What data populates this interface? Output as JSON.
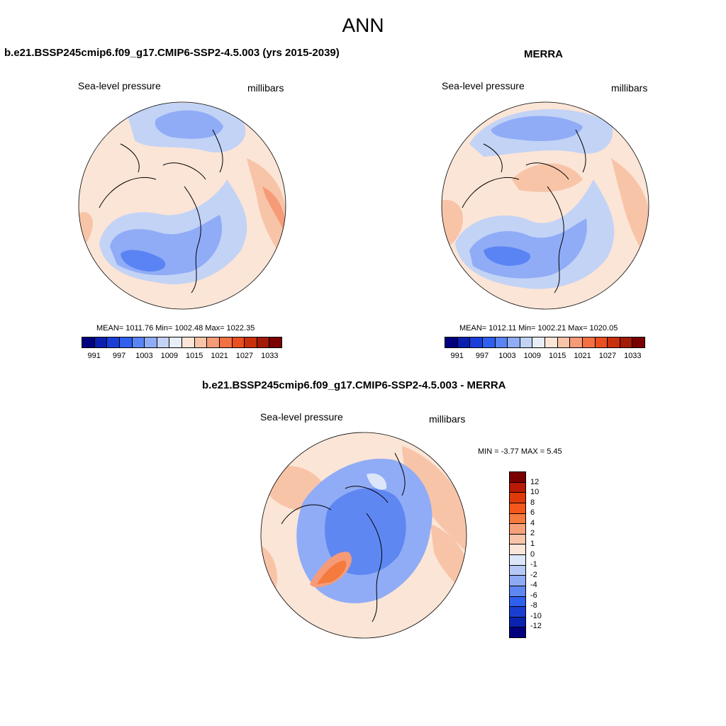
{
  "figure": {
    "title": "ANN"
  },
  "panels": [
    {
      "id": "model",
      "title": "b.e21.BSSP245cmip6.f09_g17.CMIP6-SSP2-4.5.003 (yrs 2015-2039)",
      "variable": "Sea-level pressure",
      "units": "millibars",
      "stats": "MEAN= 1011.76  Min= 1002.48  Max= 1022.35"
    },
    {
      "id": "obs",
      "title": "MERRA",
      "variable": "Sea-level pressure",
      "units": "millibars",
      "stats": "MEAN= 1012.11  Min= 1002.21  Max= 1020.05"
    },
    {
      "id": "diff",
      "title": "b.e21.BSSP245cmip6.f09_g17.CMIP6-SSP2-4.5.003 - MERRA",
      "variable": "Sea-level pressure",
      "units": "millibars",
      "stats": "MIN =  -3.77 MAX =   5.45"
    }
  ],
  "colorbars": {
    "absolute": {
      "colors": [
        "#00007f",
        "#0a1fb0",
        "#1a3fd8",
        "#2e5fef",
        "#5a84f4",
        "#90acf6",
        "#c2d3f6",
        "#e8eef8",
        "#fbe5d6",
        "#f8c4a8",
        "#f69b78",
        "#f37042",
        "#e94f1f",
        "#c8300d",
        "#a31a06",
        "#7a0000"
      ],
      "tick_labels": [
        "991",
        "997",
        "1003",
        "1009",
        "1015",
        "1021",
        "1027",
        "1033"
      ]
    },
    "difference": {
      "colors": [
        "#7a0000",
        "#b81a04",
        "#e03a0c",
        "#f4571b",
        "#f47a3e",
        "#f6a07a",
        "#f8c4a8",
        "#fbe5d6",
        "#dde6f8",
        "#b6c9f6",
        "#8eaaf4",
        "#5f87f2",
        "#2f5fef",
        "#1a3fd0",
        "#0a22b0",
        "#00007f"
      ],
      "tick_labels": [
        "12",
        "10",
        "8",
        "6",
        "4",
        "2",
        "1",
        "0",
        "-1",
        "-2",
        "-4",
        "-6",
        "-8",
        "-10",
        "-12"
      ]
    }
  }
}
